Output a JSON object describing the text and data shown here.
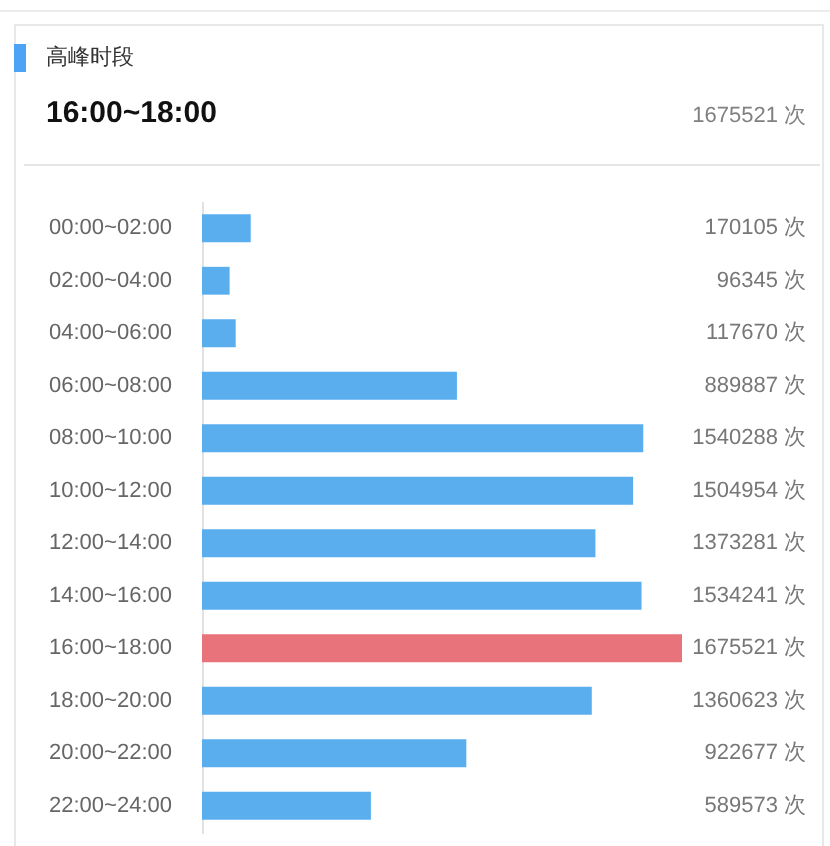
{
  "chart_data": {
    "type": "bar",
    "orientation": "horizontal",
    "title": "高峰时段",
    "subtitle": "16:00~18:00",
    "annotations": [
      "1675521 次"
    ],
    "categories": [
      "00:00~02:00",
      "02:00~04:00",
      "04:00~06:00",
      "06:00~08:00",
      "08:00~10:00",
      "10:00~12:00",
      "12:00~14:00",
      "14:00~16:00",
      "16:00~18:00",
      "18:00~20:00",
      "20:00~22:00",
      "22:00~24:00"
    ],
    "values": [
      170105,
      96345,
      117670,
      889887,
      1540288,
      1504954,
      1373281,
      1534241,
      1675521,
      1360623,
      922677,
      589573
    ],
    "colors": [
      "#5aaeee",
      "#5aaeee",
      "#5aaeee",
      "#5aaeee",
      "#5aaeee",
      "#5aaeee",
      "#5aaeee",
      "#5aaeee",
      "#e8737b",
      "#5aaeee",
      "#5aaeee",
      "#5aaeee"
    ],
    "value_labels": [
      "170105 次",
      "96345 次",
      "117670 次",
      "889887 次",
      "1540288 次",
      "1504954 次",
      "1373281 次",
      "1534241 次",
      "1675521 次",
      "1360623 次",
      "922677 次",
      "589573 次"
    ],
    "xlim": [
      0,
      1675521
    ],
    "tick_labels": "y",
    "grid": false,
    "legend": false
  }
}
